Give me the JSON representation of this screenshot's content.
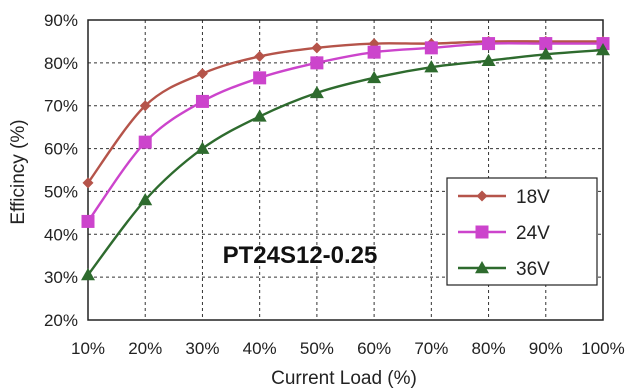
{
  "chart_data": {
    "type": "line",
    "title": "",
    "xlabel": "Current Load (%)",
    "ylabel": "Efficincy (%)",
    "annotation": "PT24S12-0.25",
    "x": [
      10,
      20,
      30,
      40,
      50,
      60,
      70,
      80,
      90,
      100
    ],
    "x_tick_labels": [
      "10%",
      "20%",
      "30%",
      "40%",
      "50%",
      "60%",
      "70%",
      "80%",
      "90%",
      "100%"
    ],
    "y_tick_labels": [
      "20%",
      "30%",
      "40%",
      "50%",
      "60%",
      "70%",
      "80%",
      "90%"
    ],
    "xlim": [
      10,
      100
    ],
    "ylim": [
      20,
      90
    ],
    "grid": true,
    "legend_position": "bottom-right",
    "series": [
      {
        "name": "18V",
        "color": "#b5544a",
        "marker": "diamond",
        "values": [
          52,
          70,
          77.5,
          81.5,
          83.5,
          84.5,
          84.5,
          85,
          85,
          85
        ]
      },
      {
        "name": "24V",
        "color": "#cc44cc",
        "marker": "square",
        "values": [
          43,
          61.5,
          71,
          76.5,
          80,
          82.5,
          83.5,
          84.5,
          84.5,
          84.5
        ]
      },
      {
        "name": "36V",
        "color": "#2e6b2e",
        "marker": "triangle",
        "values": [
          30.5,
          48,
          60,
          67.5,
          73,
          76.5,
          79,
          80.5,
          82,
          83
        ]
      }
    ]
  }
}
